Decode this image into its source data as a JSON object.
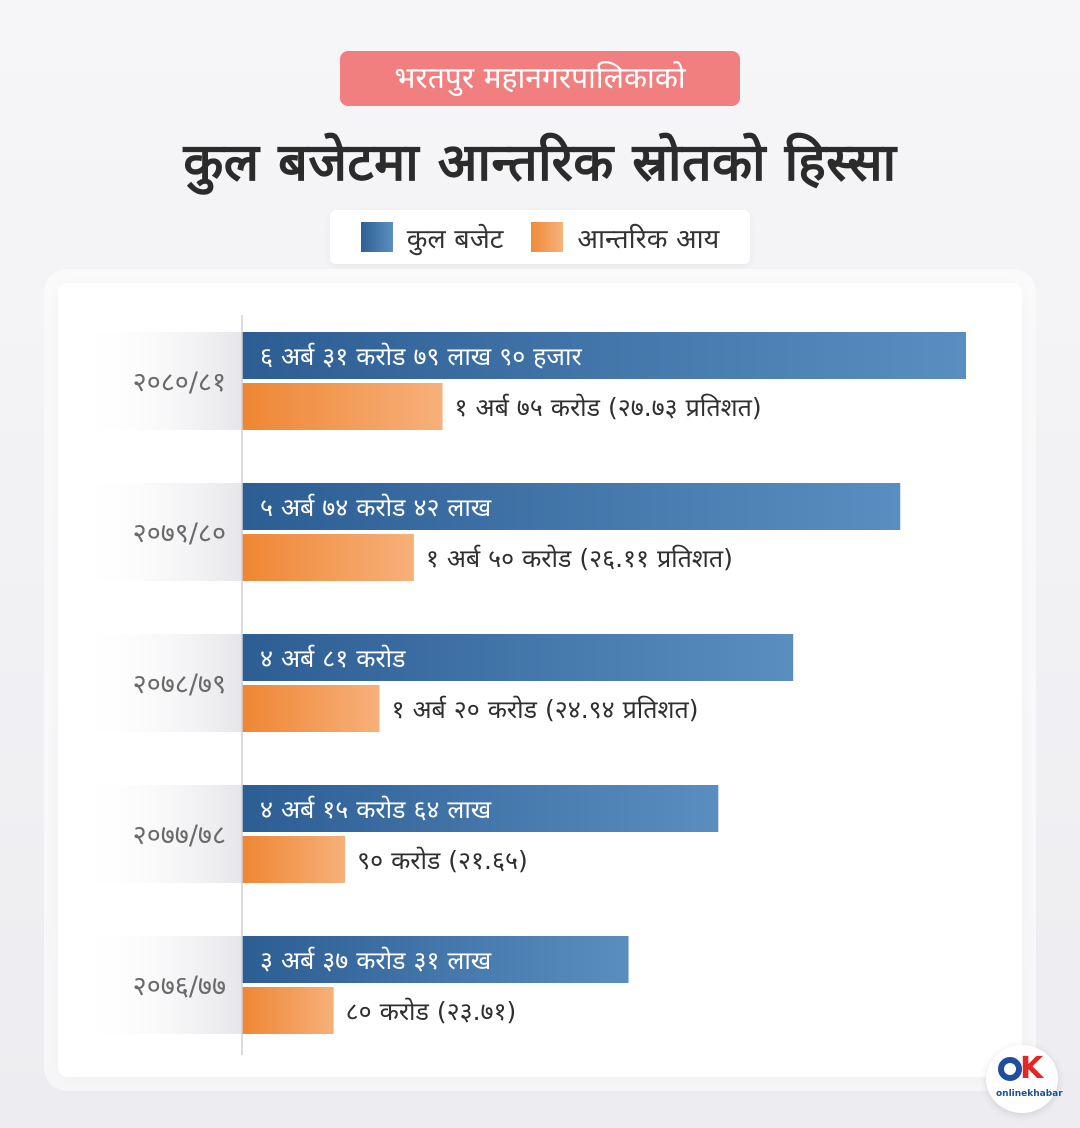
{
  "header": {
    "subtitle": "भरतपुर महानगरपालिकाको",
    "title": "कुल बजेटमा आन्तरिक स्रोतको हिस्सा"
  },
  "legend": {
    "items": [
      {
        "label": "कुल बजेट",
        "color": "#3e72ab"
      },
      {
        "label": "आन्तरिक आय",
        "color": "#f29a52"
      }
    ]
  },
  "logo": {
    "brand": "onlinekhabar"
  },
  "chart_data": {
    "type": "bar",
    "orientation": "horizontal",
    "unit": "करोड",
    "categories": [
      "२०८०/८१",
      "२०७९/८०",
      "२०७८/७९",
      "२०७७/७८",
      "२०७६/७७"
    ],
    "series": [
      {
        "name": "कुल बजेट",
        "color": "#3e72ab",
        "values": [
          631.799,
          574.42,
          481,
          415.64,
          337.31
        ],
        "labels": [
          "६ अर्ब ३१ करोड ७९ लाख ९० हजार",
          "५ अर्ब ७४ करोड ४२ लाख",
          "४ अर्ब ८१ करोड",
          "४ अर्ब १५ करोड ६४ लाख",
          "३ अर्ब ३७ करोड ३१ लाख"
        ]
      },
      {
        "name": "आन्तरिक आय",
        "color": "#f29a52",
        "values": [
          175,
          150,
          120,
          90,
          80
        ],
        "labels": [
          "१ अर्ब ७५ करोड (२७.७३ प्रतिशत)",
          "१ अर्ब ५० करोड (२६.११ प्रतिशत)",
          "१ अर्ब २० करोड (२४.९४ प्रतिशत)",
          "९० करोड (२१.६५)",
          "८० करोड (२३.७१)"
        ]
      }
    ],
    "xlim": [
      0,
      631.799
    ]
  }
}
